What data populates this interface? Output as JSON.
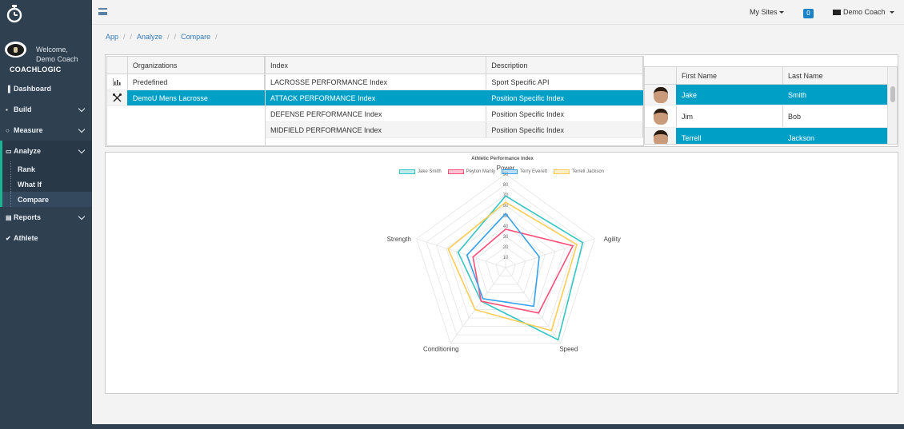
{
  "brand": {
    "name": "COACHLOGIC",
    "welcome_line1": "Welcome,",
    "welcome_line2": "Demo Coach"
  },
  "nav": {
    "dashboard": "Dashboard",
    "build": "Build",
    "measure": "Measure",
    "analyze": "Analyze",
    "analyze_sub": [
      "Rank",
      "What If",
      "Compare"
    ],
    "reports": "Reports",
    "athlete": "Athlete"
  },
  "topbar": {
    "my_sites": "My Sites",
    "notifications": "0",
    "user": "Demo Coach"
  },
  "breadcrumb": [
    "App",
    "Analyze",
    "Compare"
  ],
  "organizations": {
    "header": "Organizations",
    "rows": [
      {
        "name": "Predefined",
        "icon": "chart-icon"
      },
      {
        "name": "DemoU Mens Lacrosse",
        "icon": "lacrosse-sticks-icon"
      }
    ]
  },
  "indexes": {
    "headers": [
      "Index",
      "Description"
    ],
    "rows": [
      [
        "LACROSSE PERFORMANCE Index",
        "Sport Specific API"
      ],
      [
        "ATTACK PERFORMANCE Index",
        "Position Specific Index"
      ],
      [
        "DEFENSE PERFORMANCE Index",
        "Position Specific Index"
      ],
      [
        "MIDFIELD PERFORMANCE Index",
        "Position Specific Index"
      ]
    ]
  },
  "athletes": {
    "headers": [
      "First Name",
      "Last Name"
    ],
    "rows": [
      [
        "Jake",
        "Smith"
      ],
      [
        "Jim",
        "Bob"
      ],
      [
        "Terrell",
        "Jackson"
      ]
    ]
  },
  "colors": {
    "sidebar": "#2f4050",
    "accent": "#1ab394",
    "selection": "#00a0c6",
    "badge": "#1c84c6"
  },
  "chart_data": {
    "type": "radar",
    "title": "Athletic Performance Index",
    "axes": [
      "Power",
      "Agility",
      "Speed",
      "Conditioning",
      "Strength"
    ],
    "ticks": [
      10,
      20,
      30,
      40,
      50,
      60,
      70,
      80,
      90
    ],
    "range": [
      0,
      90
    ],
    "series": [
      {
        "name": "Jake Smith",
        "color": "#36c5c5",
        "values": [
          69,
          78,
          86,
          40,
          48
        ]
      },
      {
        "name": "Peyton Manly",
        "color": "#ff4f7b",
        "values": [
          37,
          68,
          54,
          40,
          33
        ]
      },
      {
        "name": "Terry Everett",
        "color": "#36a2eb",
        "values": [
          52,
          34,
          46,
          37,
          39
        ]
      },
      {
        "name": "Terrell Jackson",
        "color": "#ffcd56",
        "values": [
          63,
          72,
          75,
          50,
          58
        ]
      }
    ]
  }
}
